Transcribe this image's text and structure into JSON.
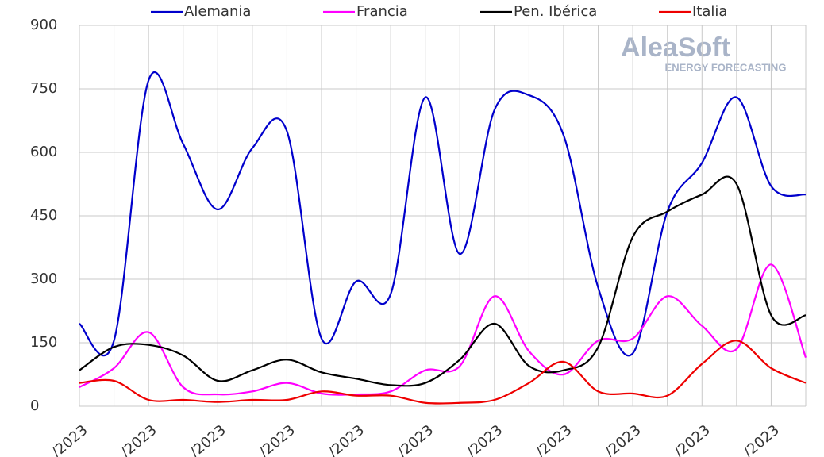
{
  "chart_data": {
    "type": "line",
    "categories": [
      "/2023",
      null,
      "/2023",
      null,
      "/2023",
      null,
      "/2023",
      null,
      "/2023",
      null,
      "/2023",
      null,
      "/2023",
      null,
      "/2023",
      null,
      "/2023",
      null,
      "/2023",
      null,
      "/2023",
      null
    ],
    "series": [
      {
        "name": "Alemania",
        "color": "#0000cc",
        "values": [
          195,
          155,
          770,
          620,
          465,
          610,
          650,
          160,
          295,
          265,
          730,
          360,
          700,
          735,
          640,
          280,
          125,
          460,
          575,
          730,
          520,
          500
        ]
      },
      {
        "name": "Francia",
        "color": "#ff00ff",
        "values": [
          45,
          90,
          175,
          45,
          28,
          35,
          55,
          30,
          28,
          35,
          85,
          95,
          260,
          130,
          75,
          155,
          160,
          260,
          190,
          135,
          335,
          115
        ]
      },
      {
        "name": "Pen. Ibérica",
        "color": "#000000",
        "values": [
          85,
          140,
          145,
          120,
          60,
          85,
          110,
          80,
          65,
          50,
          55,
          110,
          195,
          95,
          85,
          140,
          400,
          460,
          500,
          525,
          215,
          215
        ]
      },
      {
        "name": "Italia",
        "color": "#ee0000",
        "values": [
          55,
          60,
          15,
          15,
          10,
          15,
          15,
          35,
          25,
          25,
          8,
          8,
          15,
          55,
          105,
          35,
          30,
          25,
          100,
          155,
          90,
          55
        ]
      }
    ],
    "ylim": [
      0,
      900
    ],
    "yticks": [
      0,
      150,
      300,
      450,
      600,
      750,
      900
    ],
    "grid": true,
    "watermark": {
      "brand": "AleaSoft",
      "tagline": "ENERGY FORECASTING"
    }
  }
}
